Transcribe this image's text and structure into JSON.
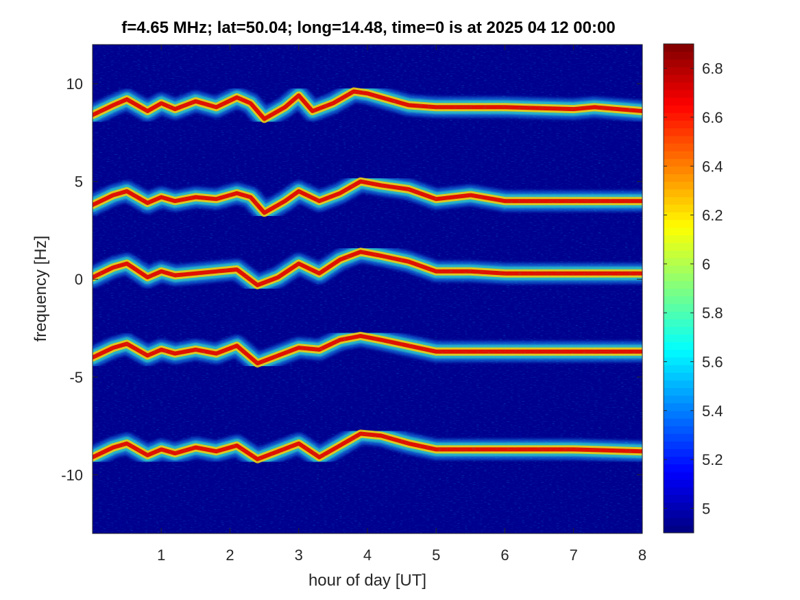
{
  "chart_data": {
    "type": "heatmap",
    "title": "f=4.65 MHz;  lat=50.04; long=14.48, time=0 is at 2025 04 12 00:00",
    "xlabel": "hour of day [UT]",
    "ylabel": "frequency [Hz]",
    "xlim": [
      0,
      8
    ],
    "ylim": [
      -13,
      12
    ],
    "xticks": [
      1,
      2,
      3,
      4,
      5,
      6,
      7,
      8
    ],
    "yticks": [
      10,
      5,
      0,
      -5,
      -10
    ],
    "colorbar": {
      "colormap": "jet",
      "limits": [
        4.9,
        6.9
      ],
      "ticks": [
        6.8,
        6.6,
        6.4,
        6.2,
        6,
        5.8,
        5.6,
        5.4,
        5.2,
        5
      ]
    },
    "background_color": "#00008f",
    "series": [
      {
        "center_frequency": 8.7,
        "trace": [
          [
            0,
            8.4
          ],
          [
            0.3,
            8.9
          ],
          [
            0.5,
            9.2
          ],
          [
            0.8,
            8.6
          ],
          [
            1.0,
            9.0
          ],
          [
            1.2,
            8.7
          ],
          [
            1.5,
            9.1
          ],
          [
            1.8,
            8.8
          ],
          [
            2.1,
            9.3
          ],
          [
            2.3,
            9.0
          ],
          [
            2.5,
            8.2
          ],
          [
            2.8,
            8.8
          ],
          [
            3.0,
            9.4
          ],
          [
            3.2,
            8.6
          ],
          [
            3.5,
            9.0
          ],
          [
            3.8,
            9.6
          ],
          [
            4.0,
            9.5
          ],
          [
            4.3,
            9.2
          ],
          [
            4.6,
            8.9
          ],
          [
            5.0,
            8.8
          ],
          [
            6.0,
            8.8
          ],
          [
            7.0,
            8.7
          ],
          [
            7.3,
            8.8
          ],
          [
            8.0,
            8.6
          ]
        ]
      },
      {
        "center_frequency": 4.1,
        "trace": [
          [
            0,
            3.8
          ],
          [
            0.3,
            4.3
          ],
          [
            0.5,
            4.5
          ],
          [
            0.8,
            3.9
          ],
          [
            1.0,
            4.2
          ],
          [
            1.2,
            4.0
          ],
          [
            1.5,
            4.2
          ],
          [
            1.8,
            4.1
          ],
          [
            2.1,
            4.4
          ],
          [
            2.3,
            4.2
          ],
          [
            2.5,
            3.4
          ],
          [
            2.8,
            4.0
          ],
          [
            3.0,
            4.5
          ],
          [
            3.3,
            4.0
          ],
          [
            3.6,
            4.4
          ],
          [
            3.9,
            5.0
          ],
          [
            4.2,
            4.8
          ],
          [
            4.6,
            4.6
          ],
          [
            5.0,
            4.1
          ],
          [
            5.5,
            4.3
          ],
          [
            6.0,
            4.0
          ],
          [
            7.0,
            4.0
          ],
          [
            8.0,
            4.0
          ]
        ]
      },
      {
        "center_frequency": 0.3,
        "trace": [
          [
            0,
            0.1
          ],
          [
            0.3,
            0.6
          ],
          [
            0.5,
            0.8
          ],
          [
            0.8,
            0.1
          ],
          [
            1.0,
            0.4
          ],
          [
            1.2,
            0.2
          ],
          [
            1.5,
            0.3
          ],
          [
            1.8,
            0.4
          ],
          [
            2.1,
            0.5
          ],
          [
            2.4,
            -0.3
          ],
          [
            2.7,
            0.1
          ],
          [
            3.0,
            0.8
          ],
          [
            3.3,
            0.3
          ],
          [
            3.6,
            1.0
          ],
          [
            3.9,
            1.4
          ],
          [
            4.2,
            1.2
          ],
          [
            4.6,
            0.9
          ],
          [
            5.0,
            0.4
          ],
          [
            5.5,
            0.4
          ],
          [
            6.0,
            0.3
          ],
          [
            7.0,
            0.3
          ],
          [
            8.0,
            0.3
          ]
        ]
      },
      {
        "center_frequency": -3.7,
        "trace": [
          [
            0,
            -4.0
          ],
          [
            0.3,
            -3.5
          ],
          [
            0.5,
            -3.3
          ],
          [
            0.8,
            -3.9
          ],
          [
            1.0,
            -3.6
          ],
          [
            1.2,
            -3.8
          ],
          [
            1.5,
            -3.6
          ],
          [
            1.8,
            -3.8
          ],
          [
            2.1,
            -3.4
          ],
          [
            2.4,
            -4.3
          ],
          [
            2.7,
            -3.9
          ],
          [
            3.0,
            -3.5
          ],
          [
            3.3,
            -3.6
          ],
          [
            3.6,
            -3.1
          ],
          [
            3.9,
            -2.9
          ],
          [
            4.2,
            -3.1
          ],
          [
            4.6,
            -3.4
          ],
          [
            5.0,
            -3.7
          ],
          [
            5.5,
            -3.7
          ],
          [
            6.0,
            -3.7
          ],
          [
            7.0,
            -3.7
          ],
          [
            8.0,
            -3.7
          ]
        ]
      },
      {
        "center_frequency": -8.8,
        "trace": [
          [
            0,
            -9.1
          ],
          [
            0.3,
            -8.6
          ],
          [
            0.5,
            -8.4
          ],
          [
            0.8,
            -9.0
          ],
          [
            1.0,
            -8.7
          ],
          [
            1.2,
            -8.9
          ],
          [
            1.5,
            -8.6
          ],
          [
            1.8,
            -8.8
          ],
          [
            2.1,
            -8.5
          ],
          [
            2.4,
            -9.2
          ],
          [
            2.7,
            -8.8
          ],
          [
            3.0,
            -8.4
          ],
          [
            3.3,
            -9.1
          ],
          [
            3.6,
            -8.5
          ],
          [
            3.9,
            -7.9
          ],
          [
            4.2,
            -8.0
          ],
          [
            4.6,
            -8.4
          ],
          [
            5.0,
            -8.7
          ],
          [
            5.5,
            -8.7
          ],
          [
            6.0,
            -8.7
          ],
          [
            7.0,
            -8.7
          ],
          [
            8.0,
            -8.8
          ]
        ]
      }
    ]
  }
}
